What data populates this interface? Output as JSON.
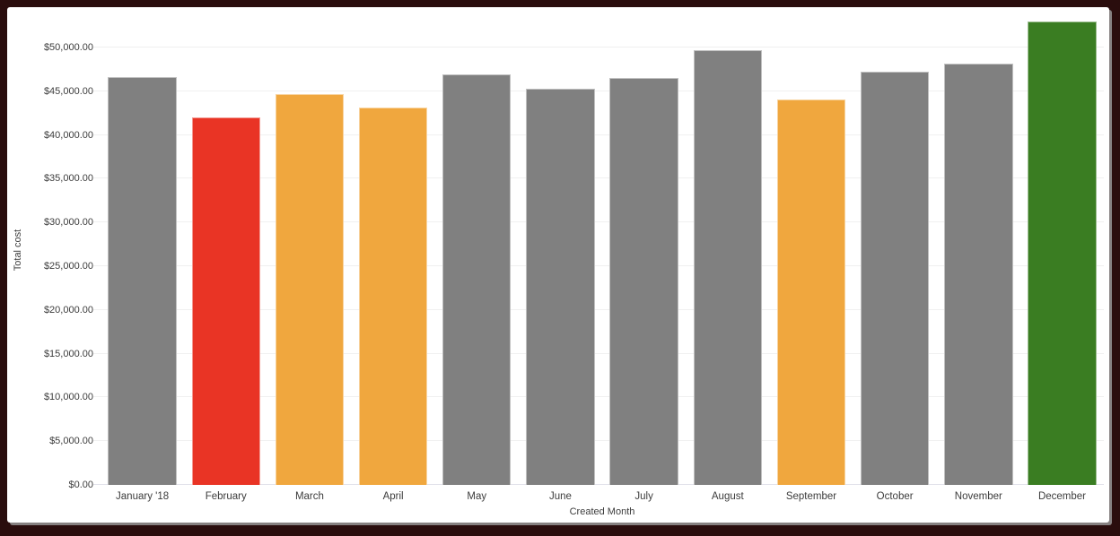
{
  "window": {
    "frame_color": "#2A0D0D",
    "card_background": "#FFFFFF"
  },
  "chart_data": {
    "type": "bar",
    "title": "",
    "xlabel": "Created Month",
    "ylabel": "Total cost",
    "categories": [
      "January '18",
      "February",
      "March",
      "April",
      "May",
      "June",
      "July",
      "August",
      "September",
      "October",
      "November",
      "December"
    ],
    "values": [
      46600,
      42000,
      44700,
      43100,
      46900,
      45300,
      46500,
      49700,
      44100,
      47200,
      48200,
      53000
    ],
    "bar_colors": [
      "#808080",
      "#E93425",
      "#F0A73E",
      "#F0A73E",
      "#808080",
      "#808080",
      "#808080",
      "#808080",
      "#F0A73E",
      "#808080",
      "#808080",
      "#3A7D22"
    ],
    "y_ticks": [
      {
        "value": 0,
        "label": "$0.00"
      },
      {
        "value": 5000,
        "label": "$5,000.00"
      },
      {
        "value": 10000,
        "label": "$10,000.00"
      },
      {
        "value": 15000,
        "label": "$15,000.00"
      },
      {
        "value": 20000,
        "label": "$20,000.00"
      },
      {
        "value": 25000,
        "label": "$25,000.00"
      },
      {
        "value": 30000,
        "label": "$30,000.00"
      },
      {
        "value": 35000,
        "label": "$35,000.00"
      },
      {
        "value": 40000,
        "label": "$40,000.00"
      },
      {
        "value": 45000,
        "label": "$45,000.00"
      },
      {
        "value": 50000,
        "label": "$50,000.00"
      }
    ],
    "ylim": [
      0,
      53600
    ],
    "grid": "horizontal",
    "legend": "none",
    "colors": {
      "default_bar": "#808080",
      "alert_red": "#E93425",
      "warning_orange": "#F0A73E",
      "good_green": "#3A7D22",
      "gridline": "#F0F0F0",
      "axis_text": "#3C3C3C"
    }
  }
}
